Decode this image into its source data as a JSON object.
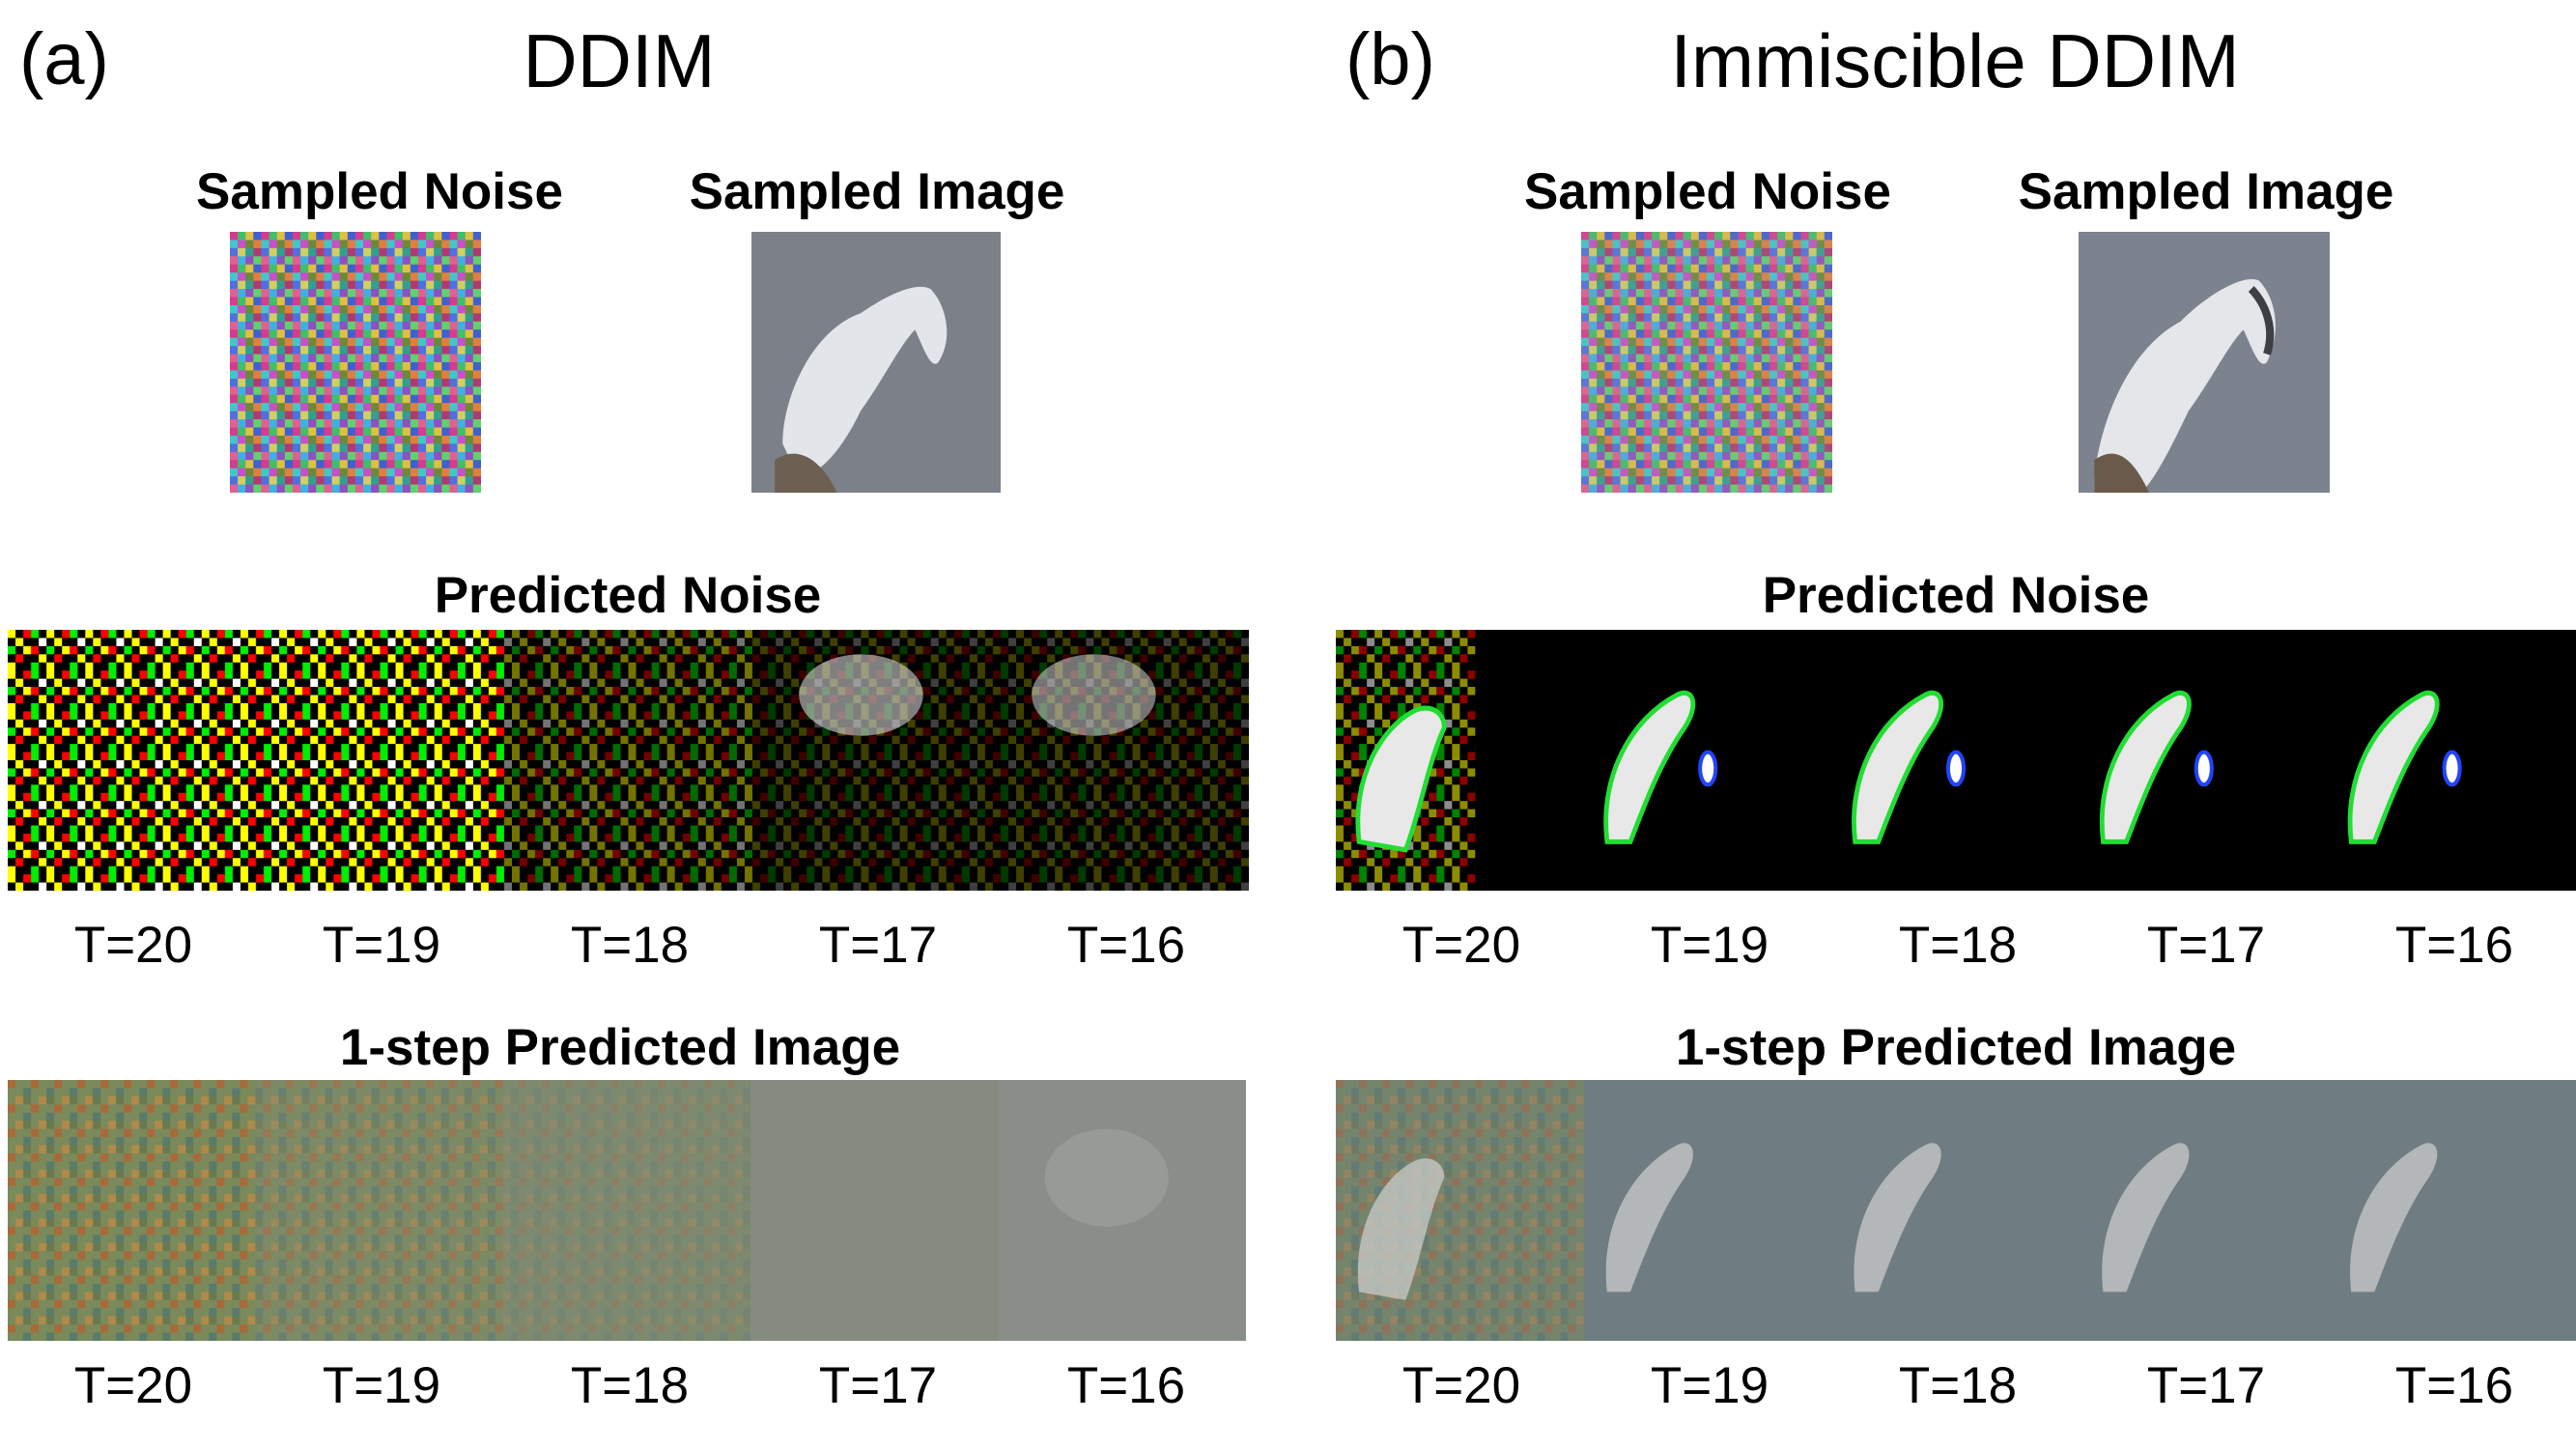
{
  "panel_a": {
    "letter": "(a)",
    "title": "DDIM",
    "sampled_noise_label": "Sampled Noise",
    "sampled_image_label": "Sampled Image",
    "predicted_noise_label": "Predicted Noise",
    "predicted_image_label": "1-step Predicted Image",
    "timesteps": [
      "T=20",
      "T=19",
      "T=18",
      "T=17",
      "T=16"
    ]
  },
  "panel_b": {
    "letter": "(b)",
    "title": "Immiscible DDIM",
    "sampled_noise_label": "Sampled Noise",
    "sampled_image_label": "Sampled Image",
    "predicted_noise_label": "Predicted Noise",
    "predicted_image_label": "1-step Predicted Image",
    "timesteps": [
      "T=20",
      "T=19",
      "T=18",
      "T=17",
      "T=16"
    ]
  }
}
